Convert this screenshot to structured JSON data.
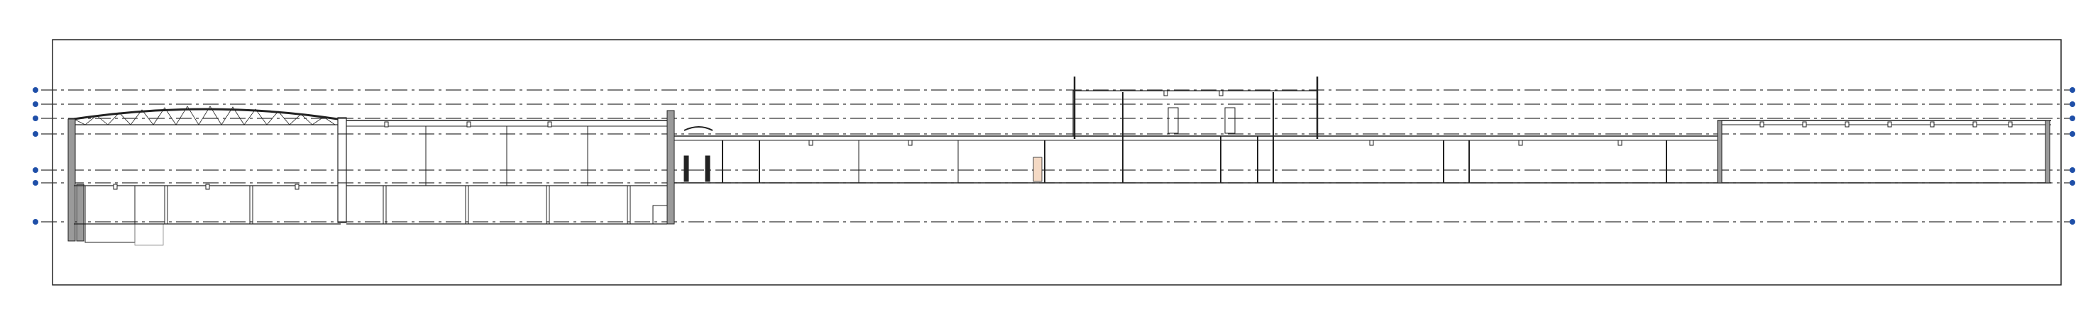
{
  "drawing": {
    "line_color": "#222222",
    "hatch_color": "#9a9a9a",
    "accent_fill": "#f4d9c4",
    "level_marker_color": "#1f4fa8"
  },
  "levels": [
    {
      "id": "l1",
      "left_label": "",
      "right_label": ""
    },
    {
      "id": "l2",
      "left_label": "",
      "right_label": ""
    },
    {
      "id": "l3",
      "left_label": "",
      "right_label": ""
    },
    {
      "id": "l4",
      "left_label": "",
      "right_label": ""
    },
    {
      "id": "l5",
      "left_label": "",
      "right_label": ""
    },
    {
      "id": "l6",
      "left_label": "",
      "right_label": ""
    },
    {
      "id": "l7",
      "left_label": "",
      "right_label": ""
    }
  ]
}
